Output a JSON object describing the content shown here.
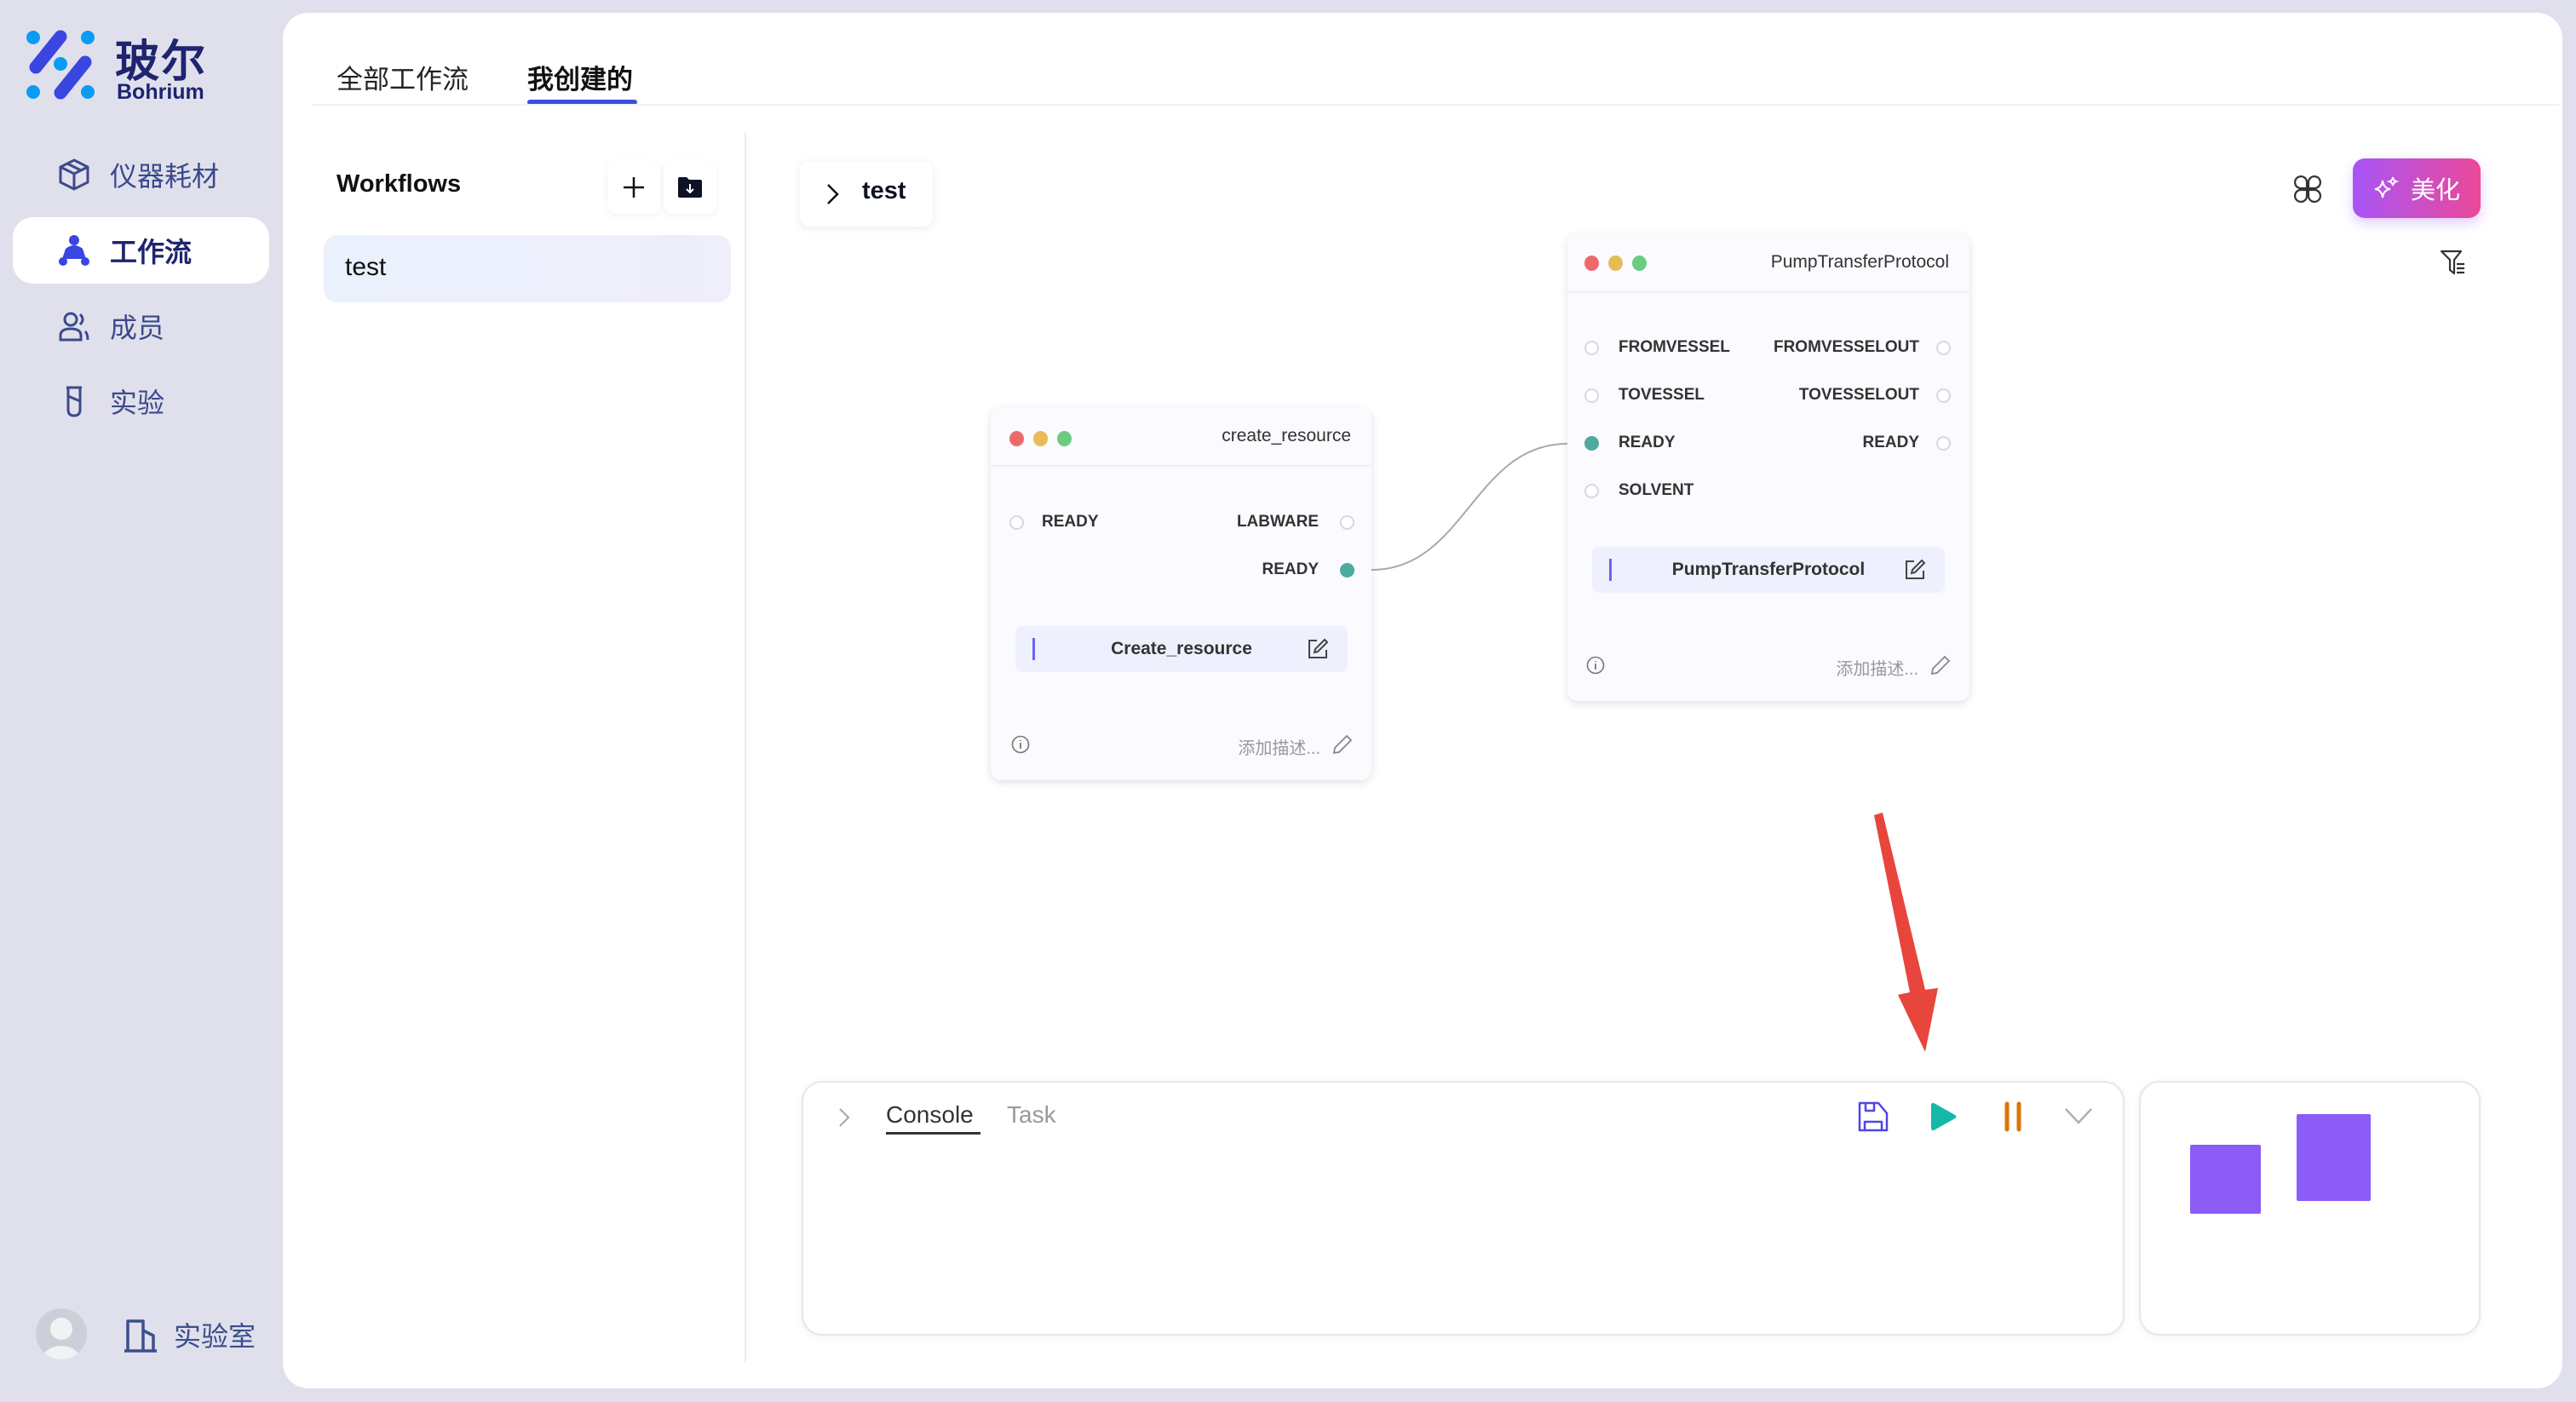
{
  "brand": {
    "name_cn": "玻尔",
    "name_en": "Bohrium",
    "colors": {
      "primary": "#3b4fe0",
      "sidebar_bg": "#e0e0ec",
      "text_nav": "#3b4a8c"
    }
  },
  "sidebar": {
    "items": [
      {
        "label": "仪器耗材",
        "icon": "cube-icon",
        "active": false
      },
      {
        "label": "工作流",
        "icon": "workflow-icon",
        "active": true
      },
      {
        "label": "成员",
        "icon": "users-icon",
        "active": false
      },
      {
        "label": "实验",
        "icon": "flask-icon",
        "active": false
      }
    ],
    "footer": {
      "lab_label": "实验室",
      "avatar": "avatar-icon"
    }
  },
  "tabs": [
    {
      "label": "全部工作流",
      "active": false
    },
    {
      "label": "我创建的",
      "active": true
    }
  ],
  "workflows": {
    "title": "Workflows",
    "items": [
      {
        "label": "test",
        "selected": true
      }
    ]
  },
  "canvas": {
    "breadcrumb": "test",
    "beautify_label": "美化",
    "nodes": [
      {
        "title": "create_resource",
        "inputs": [
          {
            "label": "READY",
            "connected": false
          }
        ],
        "outputs": [
          {
            "label": "LABWARE",
            "connected": false
          },
          {
            "label": "READY",
            "connected": true
          }
        ],
        "name": "Create_resource",
        "desc_placeholder": "添加描述..."
      },
      {
        "title": "PumpTransferProtocol",
        "inputs": [
          {
            "label": "FROMVESSEL",
            "connected": false
          },
          {
            "label": "TOVESSEL",
            "connected": false
          },
          {
            "label": "READY",
            "connected": true
          },
          {
            "label": "SOLVENT",
            "connected": false
          }
        ],
        "outputs": [
          {
            "label": "FROMVESSELOUT",
            "connected": false
          },
          {
            "label": "TOVESSELOUT",
            "connected": false
          },
          {
            "label": "READY",
            "connected": false
          }
        ],
        "name": "PumpTransferProtocol",
        "desc_placeholder": "添加描述..."
      }
    ],
    "edges": [
      {
        "from": "create_resource.READY",
        "to": "PumpTransferProtocol.READY"
      }
    ]
  },
  "console": {
    "tabs": [
      {
        "label": "Console",
        "active": true
      },
      {
        "label": "Task",
        "active": false
      }
    ],
    "colors": {
      "save": "#4f46e5",
      "run": "#14b8a6",
      "pause": "#d97706"
    }
  },
  "minimap": {
    "color": "#8b5cf6"
  },
  "annotation": {
    "arrow_color": "#e8453c"
  }
}
